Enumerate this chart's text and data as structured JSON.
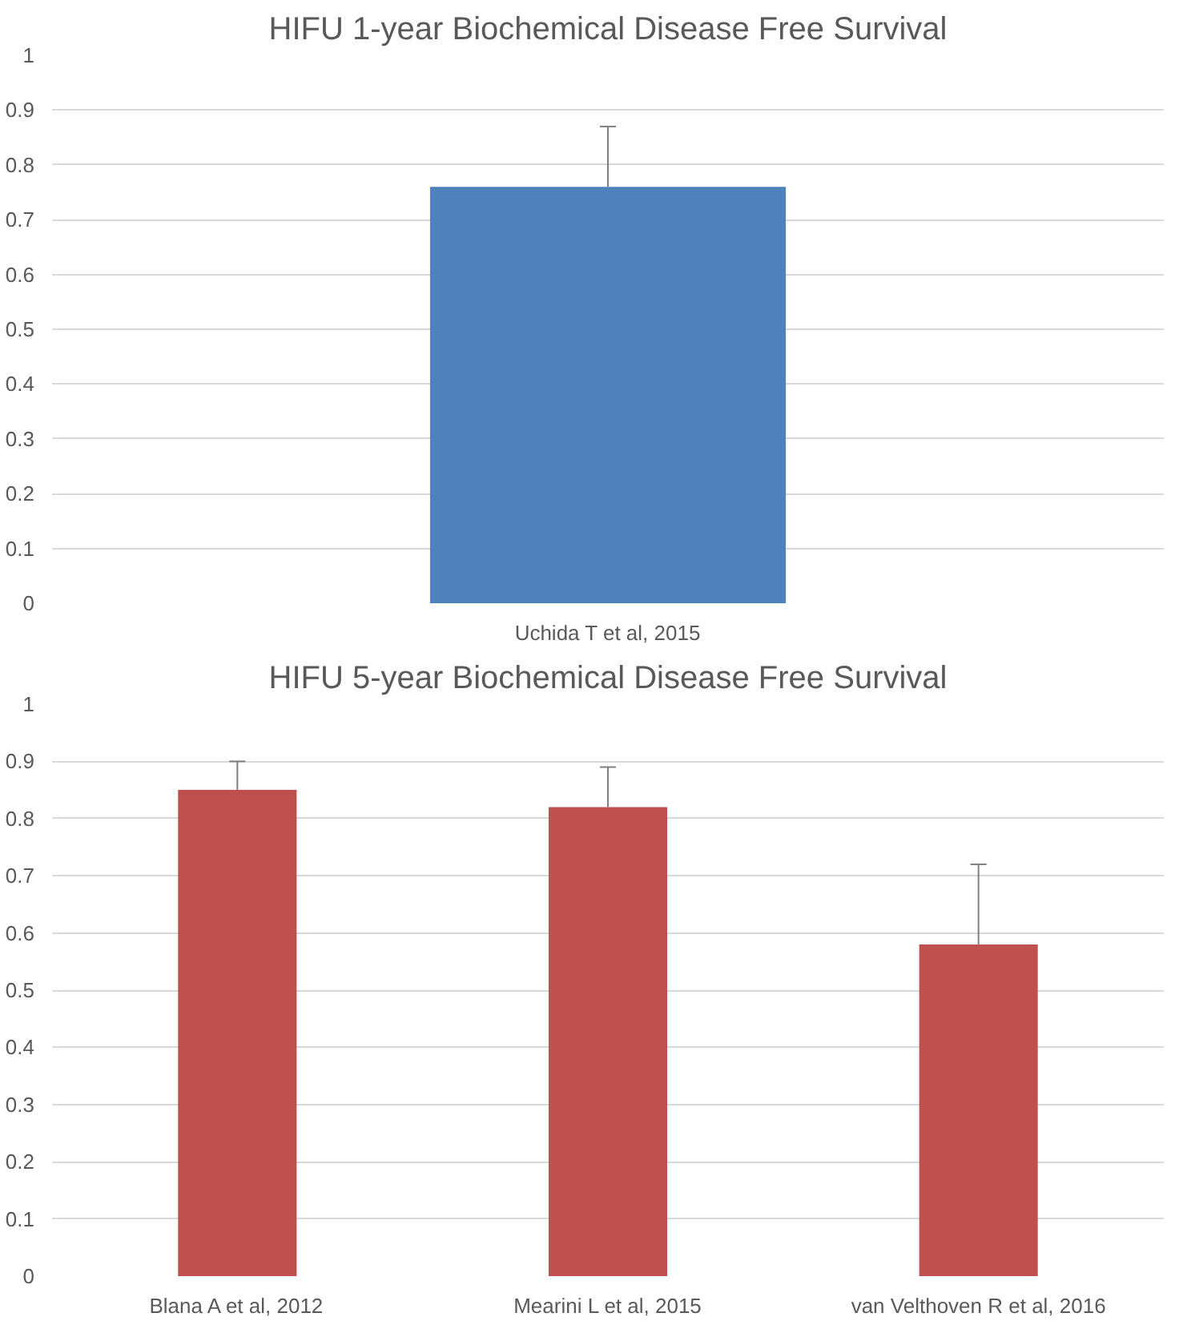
{
  "chart_data": [
    {
      "type": "bar",
      "title": "HIFU 1-year Biochemical Disease Free Survival",
      "categories": [
        "Uchida T et al, 2015"
      ],
      "values": [
        0.76
      ],
      "color": "#4f81bd",
      "errors": [
        [
          0.76,
          0.87
        ]
      ],
      "ylim": [
        0,
        1
      ],
      "yticks": [
        0,
        0.1,
        0.2,
        0.3,
        0.4,
        0.5,
        0.6,
        0.7,
        0.8,
        0.9,
        1
      ],
      "grid": "y",
      "legend": false
    },
    {
      "type": "bar",
      "title": "HIFU 5-year Biochemical Disease Free Survival",
      "categories": [
        "Blana A et al, 2012",
        "Mearini L et al, 2015",
        "van Velthoven R et al, 2016"
      ],
      "values": [
        0.85,
        0.82,
        0.58
      ],
      "color": "#c0504d",
      "errors": [
        [
          0.85,
          0.9
        ],
        [
          0.82,
          0.89
        ],
        [
          0.58,
          0.72
        ]
      ],
      "ylim": [
        0,
        1
      ],
      "yticks": [
        0,
        0.1,
        0.2,
        0.3,
        0.4,
        0.5,
        0.6,
        0.7,
        0.8,
        0.9,
        1
      ],
      "grid": "y",
      "legend": false
    }
  ]
}
